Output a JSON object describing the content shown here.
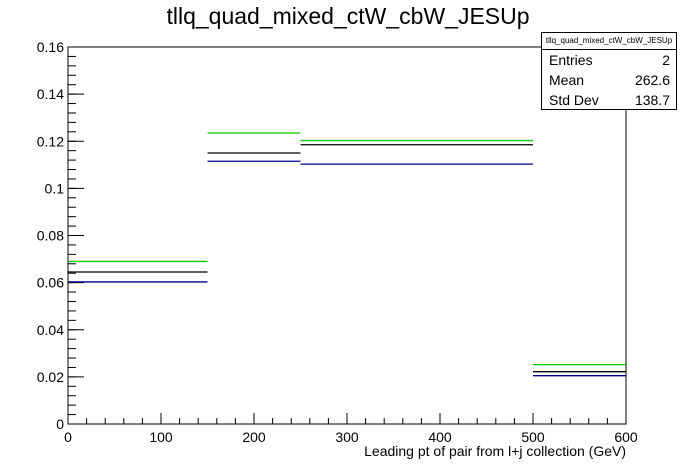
{
  "chart_data": {
    "type": "histogram",
    "title": "tllq_quad_mixed_ctW_cbW_JESUp",
    "xlabel": "Leading pt of pair from l+j collection (GeV)",
    "ylabel": "",
    "xlim": [
      0,
      600
    ],
    "ylim": [
      0,
      0.16
    ],
    "xticks": [
      "0",
      "100",
      "200",
      "300",
      "400",
      "500",
      "600"
    ],
    "yticks": [
      "0",
      "0.02",
      "0.04",
      "0.06",
      "0.08",
      "0.1",
      "0.12",
      "0.14",
      "0.16"
    ],
    "bin_edges": [
      0,
      150,
      250,
      500,
      600
    ],
    "grid": false,
    "series": [
      {
        "color": "#00cc00",
        "values": [
          0.069,
          0.1235,
          0.1203,
          0.0252
        ]
      },
      {
        "color": "#000000",
        "values": [
          0.0645,
          0.115,
          0.1185,
          0.0222
        ]
      },
      {
        "color": "#00008b",
        "values": [
          0.0603,
          0.1115,
          0.1103,
          0.0205
        ]
      }
    ]
  },
  "stats_box": {
    "title": "tllq_quad_mixed_ctW_cbW_JESUp",
    "rows": [
      {
        "label": "Entries",
        "value": "2"
      },
      {
        "label": "Mean",
        "value": "262.6"
      },
      {
        "label": "Std Dev",
        "value": "138.7"
      }
    ]
  }
}
